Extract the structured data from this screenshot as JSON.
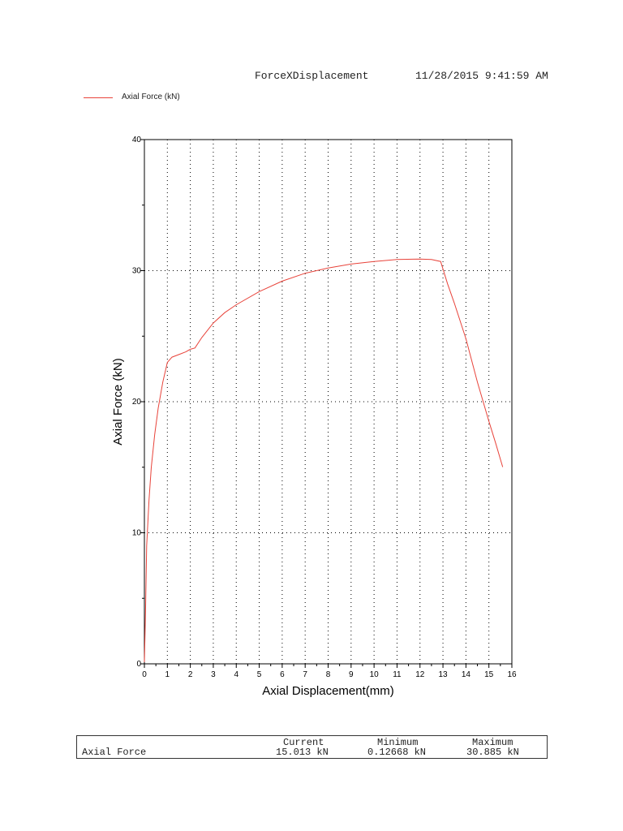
{
  "header": {
    "title": "ForceXDisplacement",
    "timestamp": "11/28/2015 9:41:59 AM"
  },
  "legend": {
    "label": "Axial Force (kN)"
  },
  "colors": {
    "series": "#e8433a",
    "axis": "#000000",
    "grid": "#000000"
  },
  "chart_data": {
    "type": "line",
    "title": "",
    "xlabel": "Axial Displacement(mm)",
    "ylabel": "Axial Force (kN)",
    "xlim": [
      0,
      16
    ],
    "ylim": [
      0,
      40
    ],
    "x_ticks": [
      0,
      1,
      2,
      3,
      4,
      5,
      6,
      7,
      8,
      9,
      10,
      11,
      12,
      13,
      14,
      15,
      16
    ],
    "y_ticks": [
      0,
      10,
      20,
      30,
      40
    ],
    "grid": true,
    "legend_position": "top-left",
    "series": [
      {
        "name": "Axial Force (kN)",
        "x": [
          0,
          0.05,
          0.1,
          0.2,
          0.3,
          0.45,
          0.6,
          0.8,
          1.0,
          1.2,
          1.5,
          1.8,
          2.0,
          2.2,
          2.5,
          3.0,
          3.5,
          4.0,
          5.0,
          6.0,
          7.0,
          8.0,
          9.0,
          10.0,
          11.0,
          12.0,
          12.5,
          12.9,
          13.2,
          13.5,
          14.0,
          14.5,
          15.0,
          15.3,
          15.6
        ],
        "y": [
          0.13,
          4,
          9,
          12.5,
          15,
          17.5,
          19.5,
          21.5,
          23.0,
          23.4,
          23.6,
          23.8,
          24.0,
          24.1,
          24.9,
          26.0,
          26.8,
          27.4,
          28.4,
          29.2,
          29.8,
          30.2,
          30.5,
          30.7,
          30.85,
          30.885,
          30.85,
          30.7,
          29.0,
          27.5,
          24.8,
          21.5,
          18.5,
          16.8,
          15.013
        ]
      }
    ]
  },
  "summary": {
    "columns": [
      "Current",
      "Minimum",
      "Maximum"
    ],
    "row_label": "Axial Force",
    "current": "15.013 kN",
    "minimum": "0.12668 kN",
    "maximum": "30.885 kN"
  }
}
